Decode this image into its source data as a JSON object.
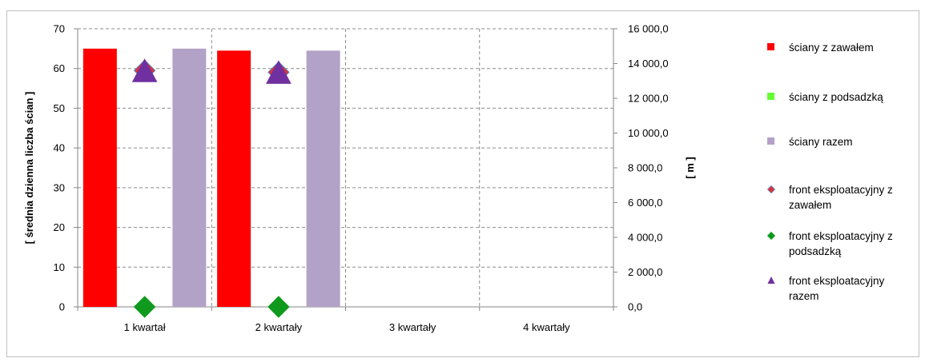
{
  "chart_data": {
    "type": "bar",
    "categories": [
      "1 kwartał",
      "2 kwartały",
      "3 kwartały",
      "4 kwartały"
    ],
    "y_left": {
      "label": "[ średnia dzienna liczba ścian ]",
      "ylim": [
        0,
        70
      ],
      "ticks": [
        0,
        10,
        20,
        30,
        40,
        50,
        60,
        70
      ],
      "tick_labels": [
        "0",
        "10",
        "20",
        "30",
        "40",
        "50",
        "60",
        "70"
      ]
    },
    "y_right": {
      "label": "[ m ]",
      "ylim": [
        0,
        16000
      ],
      "ticks": [
        0,
        2000,
        4000,
        6000,
        8000,
        10000,
        12000,
        14000,
        16000
      ],
      "tick_labels": [
        "0,0",
        "2 000,0",
        "4 000,0",
        "6 000,0",
        "8 000,0",
        "10 000,0",
        "12 000,0",
        "14 000,0",
        "16 000,0"
      ]
    },
    "grid": true,
    "legend_position": "right",
    "series": [
      {
        "name": "ściany z zawałem",
        "kind": "bar",
        "axis": "left",
        "color": "#ff0000",
        "values": [
          65,
          64.5,
          null,
          null
        ]
      },
      {
        "name": "ściany z podsadzką",
        "kind": "bar",
        "axis": "left",
        "color": "#66ff33",
        "values": [
          0,
          0,
          null,
          null
        ]
      },
      {
        "name": "ściany razem",
        "kind": "bar",
        "axis": "left",
        "color": "#b3a2c7",
        "values": [
          65,
          64.5,
          null,
          null
        ]
      },
      {
        "name": "front eksploatacyjny z zawałem",
        "kind": "marker",
        "marker": "diamond",
        "axis": "right",
        "color": "#e0303a",
        "values": [
          13600,
          13500,
          null,
          null
        ]
      },
      {
        "name": "front eksploatacyjny z podsadzką",
        "kind": "marker",
        "marker": "diamond",
        "axis": "right",
        "color": "#0f9a1e",
        "values": [
          0,
          0,
          null,
          null
        ]
      },
      {
        "name": "front eksploatacyjny razem",
        "kind": "marker",
        "marker": "triangle",
        "axis": "right",
        "color": "#7030a0",
        "values": [
          13600,
          13500,
          null,
          null
        ]
      }
    ]
  }
}
